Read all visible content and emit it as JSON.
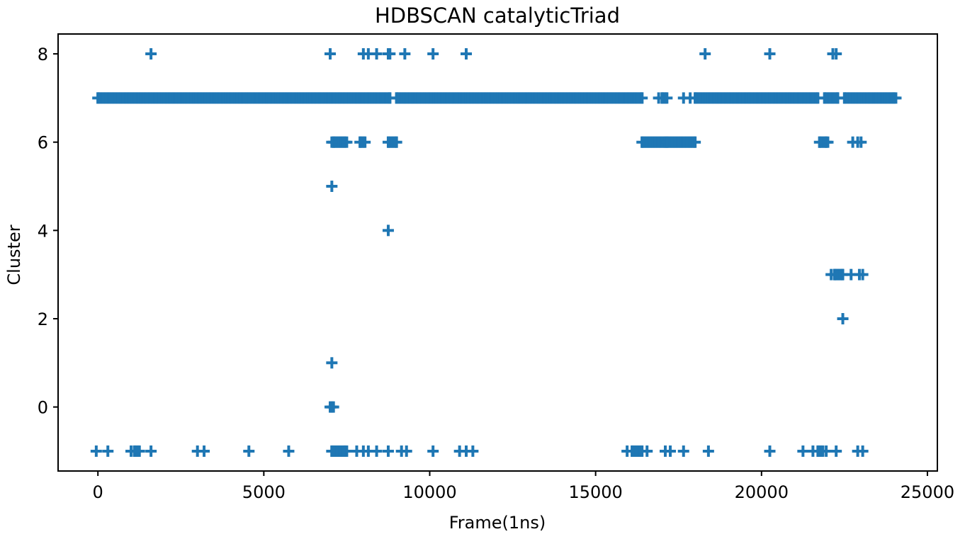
{
  "chart_data": {
    "type": "scatter",
    "title": "HDBSCAN catalyticTriad",
    "xlabel": "Frame(1ns)",
    "ylabel": "Cluster",
    "xlim": [
      -1200,
      25300
    ],
    "ylim": [
      -1.45,
      8.45
    ],
    "xticks": [
      0,
      5000,
      10000,
      15000,
      20000,
      25000
    ],
    "xtick_labels": [
      "0",
      "5000",
      "10000",
      "15000",
      "20000",
      "25000"
    ],
    "yticks": [
      0,
      2,
      4,
      6,
      8
    ],
    "ytick_labels": [
      "0",
      "2",
      "4",
      "6",
      "8"
    ],
    "grid": false,
    "legend": "none",
    "marker": "plus",
    "color": "#1f77b4",
    "dense_segments": [
      {
        "y": 7,
        "x_start": 0,
        "x_end": 8800
      },
      {
        "y": 7,
        "x_start": 9000,
        "x_end": 16400
      },
      {
        "y": 7,
        "x_start": 17000,
        "x_end": 17150
      },
      {
        "y": 7,
        "x_start": 18000,
        "x_end": 21700
      },
      {
        "y": 7,
        "x_start": 21900,
        "x_end": 22300
      },
      {
        "y": 7,
        "x_start": 22500,
        "x_end": 24000
      },
      {
        "y": 6,
        "x_start": 7100,
        "x_end": 7450
      },
      {
        "y": 6,
        "x_start": 7900,
        "x_end": 8050
      },
      {
        "y": 6,
        "x_start": 8750,
        "x_end": 9000
      },
      {
        "y": 6,
        "x_start": 16400,
        "x_end": 17100
      },
      {
        "y": 6,
        "x_start": 17150,
        "x_end": 18000
      },
      {
        "y": 6,
        "x_start": 21750,
        "x_end": 21950
      },
      {
        "y": 3,
        "x_start": 22200,
        "x_end": 22450
      },
      {
        "y": -1,
        "x_start": 1100,
        "x_end": 1250
      },
      {
        "y": -1,
        "x_start": 7050,
        "x_end": 7450
      },
      {
        "y": -1,
        "x_start": 16100,
        "x_end": 16400
      },
      {
        "y": -1,
        "x_start": 21700,
        "x_end": 21850
      }
    ],
    "points": [
      {
        "x": 1600,
        "y": 8
      },
      {
        "x": 7000,
        "y": 8
      },
      {
        "x": 8000,
        "y": 8
      },
      {
        "x": 8150,
        "y": 8
      },
      {
        "x": 8400,
        "y": 8
      },
      {
        "x": 8750,
        "y": 8
      },
      {
        "x": 8800,
        "y": 8
      },
      {
        "x": 9250,
        "y": 8
      },
      {
        "x": 10100,
        "y": 8
      },
      {
        "x": 11100,
        "y": 8
      },
      {
        "x": 18300,
        "y": 8
      },
      {
        "x": 20250,
        "y": 8
      },
      {
        "x": 22150,
        "y": 8
      },
      {
        "x": 22250,
        "y": 8
      },
      {
        "x": 16900,
        "y": 7
      },
      {
        "x": 17650,
        "y": 7
      },
      {
        "x": 17850,
        "y": 7
      },
      {
        "x": 24050,
        "y": 7
      },
      {
        "x": 7050,
        "y": 6
      },
      {
        "x": 7500,
        "y": 6
      },
      {
        "x": 22000,
        "y": 6
      },
      {
        "x": 22750,
        "y": 6
      },
      {
        "x": 22900,
        "y": 6
      },
      {
        "x": 23000,
        "y": 6
      },
      {
        "x": 7050,
        "y": 5
      },
      {
        "x": 8750,
        "y": 4
      },
      {
        "x": 22100,
        "y": 3
      },
      {
        "x": 22700,
        "y": 3
      },
      {
        "x": 22950,
        "y": 3
      },
      {
        "x": 23050,
        "y": 3
      },
      {
        "x": 22450,
        "y": 2
      },
      {
        "x": 7050,
        "y": 1
      },
      {
        "x": 7000,
        "y": 0
      },
      {
        "x": 7050,
        "y": 0
      },
      {
        "x": 7100,
        "y": 0
      },
      {
        "x": -50,
        "y": -1
      },
      {
        "x": 300,
        "y": -1
      },
      {
        "x": 1000,
        "y": -1
      },
      {
        "x": 1600,
        "y": -1
      },
      {
        "x": 3000,
        "y": -1
      },
      {
        "x": 3200,
        "y": -1
      },
      {
        "x": 4550,
        "y": -1
      },
      {
        "x": 5750,
        "y": -1
      },
      {
        "x": 7500,
        "y": -1
      },
      {
        "x": 7800,
        "y": -1
      },
      {
        "x": 8000,
        "y": -1
      },
      {
        "x": 8150,
        "y": -1
      },
      {
        "x": 8400,
        "y": -1
      },
      {
        "x": 8750,
        "y": -1
      },
      {
        "x": 9150,
        "y": -1
      },
      {
        "x": 9300,
        "y": -1
      },
      {
        "x": 10100,
        "y": -1
      },
      {
        "x": 10900,
        "y": -1
      },
      {
        "x": 11100,
        "y": -1
      },
      {
        "x": 11300,
        "y": -1
      },
      {
        "x": 15950,
        "y": -1
      },
      {
        "x": 16550,
        "y": -1
      },
      {
        "x": 17100,
        "y": -1
      },
      {
        "x": 17250,
        "y": -1
      },
      {
        "x": 17650,
        "y": -1
      },
      {
        "x": 18400,
        "y": -1
      },
      {
        "x": 20250,
        "y": -1
      },
      {
        "x": 21250,
        "y": -1
      },
      {
        "x": 21550,
        "y": -1
      },
      {
        "x": 21950,
        "y": -1
      },
      {
        "x": 22250,
        "y": -1
      },
      {
        "x": 22900,
        "y": -1
      },
      {
        "x": 23050,
        "y": -1
      }
    ]
  }
}
